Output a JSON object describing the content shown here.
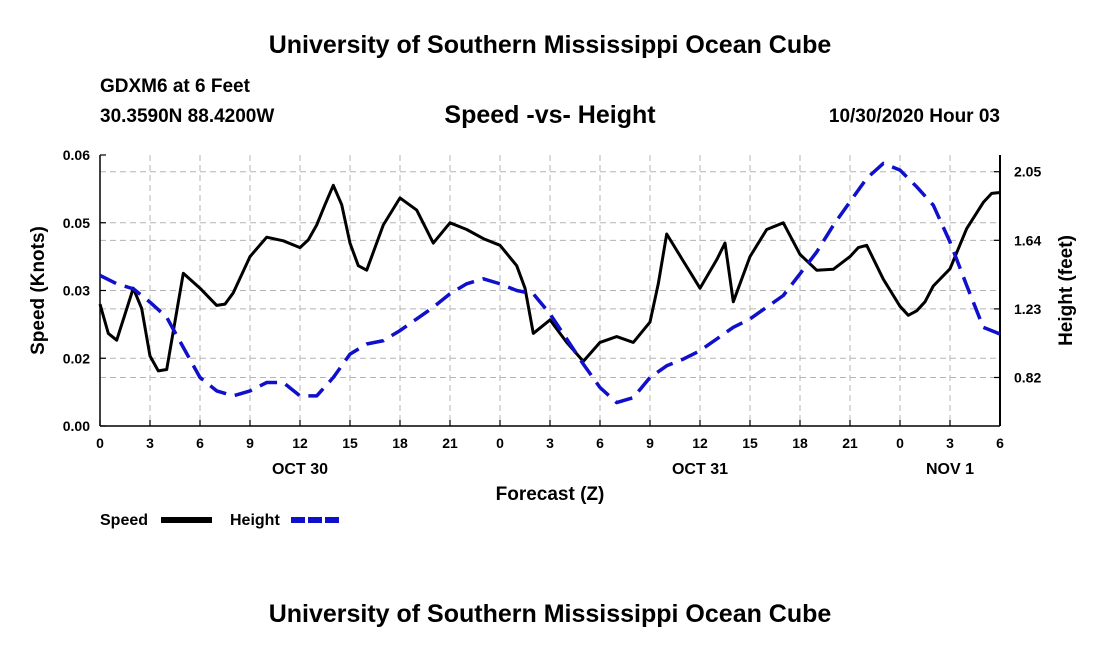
{
  "header": {
    "title": "University of Southern Mississippi Ocean Cube",
    "station": "GDXM6 at 6 Feet",
    "coords": "30.3590N 88.4200W",
    "subtitle": "Speed -vs- Height",
    "timestamp": "10/30/2020 Hour 03"
  },
  "footer": {
    "title": "University of Southern Mississippi Ocean Cube"
  },
  "colors": {
    "speed": "#000000",
    "height": "#1010cc",
    "grid": "#b4b4b4"
  },
  "chart_data": {
    "type": "line",
    "title": "Speed -vs- Height",
    "xlabel": "Forecast (Z)",
    "ylabel": "Speed (Knots)",
    "y2label": "Height (feet)",
    "xlim": [
      0,
      54
    ],
    "ylim": [
      0,
      0.06
    ],
    "y2lim": [
      0.53,
      2.15
    ],
    "x_ticks": [
      0,
      3,
      6,
      9,
      12,
      15,
      18,
      21,
      24,
      27,
      30,
      33,
      36,
      39,
      42,
      45,
      48,
      51,
      54
    ],
    "x_tick_labels": [
      "0",
      "3",
      "6",
      "9",
      "12",
      "15",
      "18",
      "21",
      "0",
      "3",
      "6",
      "9",
      "12",
      "15",
      "18",
      "21",
      "0",
      "3",
      "6"
    ],
    "x_date_labels": [
      {
        "x": 12,
        "label": "OCT 30"
      },
      {
        "x": 36,
        "label": "OCT 31"
      },
      {
        "x": 51,
        "label": "NOV 1"
      }
    ],
    "y_ticks": [
      0.0,
      0.015,
      0.03,
      0.045,
      0.06
    ],
    "y_tick_labels": [
      "0.00",
      "0.02",
      "0.03",
      "0.05",
      "0.06"
    ],
    "y2_ticks": [
      0.82,
      1.23,
      1.64,
      2.05
    ],
    "y2_tick_labels": [
      "0.82",
      "1.23",
      "1.64",
      "2.05"
    ],
    "legend": [
      {
        "name": "Speed",
        "style": "solid"
      },
      {
        "name": "Height",
        "style": "dashed"
      }
    ],
    "series": [
      {
        "name": "Speed",
        "axis": "left",
        "x": [
          0,
          0.5,
          1,
          2,
          2.5,
          3,
          3.5,
          4,
          5,
          6,
          7,
          7.5,
          8,
          9,
          10,
          11,
          12,
          12.5,
          13,
          13.5,
          14,
          14.5,
          15,
          15.5,
          16,
          17,
          18,
          19,
          20,
          21,
          22,
          23,
          24,
          25,
          25.5,
          26,
          27,
          28,
          29,
          30,
          31,
          32,
          33,
          33.5,
          34,
          35,
          35.5,
          36,
          37,
          37.5,
          38,
          39,
          40,
          41,
          42,
          43,
          44,
          45,
          45.5,
          46,
          47,
          48,
          48.5,
          49,
          49.5,
          50,
          51,
          52,
          53,
          53.5,
          54
        ],
        "y": [
          0.027,
          0.0205,
          0.019,
          0.0305,
          0.026,
          0.0155,
          0.0122,
          0.0125,
          0.0338,
          0.0305,
          0.0267,
          0.027,
          0.0295,
          0.0375,
          0.0418,
          0.041,
          0.0395,
          0.0412,
          0.0445,
          0.049,
          0.0533,
          0.049,
          0.0405,
          0.0355,
          0.0345,
          0.0445,
          0.0505,
          0.0478,
          0.0405,
          0.045,
          0.0435,
          0.0415,
          0.04,
          0.0355,
          0.0305,
          0.0205,
          0.0235,
          0.0185,
          0.0143,
          0.0185,
          0.0198,
          0.0185,
          0.023,
          0.0315,
          0.0425,
          0.0365,
          0.0335,
          0.0305,
          0.0368,
          0.0405,
          0.0275,
          0.0375,
          0.0435,
          0.045,
          0.038,
          0.0345,
          0.0347,
          0.0375,
          0.0395,
          0.04,
          0.0325,
          0.0265,
          0.0245,
          0.0255,
          0.0275,
          0.031,
          0.0348,
          0.0437,
          0.0495,
          0.0515,
          0.0517
        ]
      },
      {
        "name": "Height",
        "axis": "right",
        "x": [
          0,
          1,
          2,
          3,
          4,
          5,
          6,
          7,
          8,
          9,
          10,
          11,
          12,
          13,
          14,
          15,
          16,
          17,
          18,
          19,
          20,
          21,
          22,
          23,
          24,
          25,
          26,
          27,
          28,
          29,
          30,
          31,
          32,
          33,
          34,
          35,
          36,
          37,
          38,
          39,
          40,
          41,
          42,
          43,
          44,
          45,
          46,
          47,
          48,
          49,
          50,
          51,
          52,
          53,
          54
        ],
        "y": [
          1.43,
          1.38,
          1.35,
          1.27,
          1.18,
          1.0,
          0.82,
          0.74,
          0.71,
          0.74,
          0.79,
          0.79,
          0.71,
          0.71,
          0.82,
          0.96,
          1.02,
          1.04,
          1.1,
          1.17,
          1.24,
          1.32,
          1.38,
          1.41,
          1.38,
          1.34,
          1.32,
          1.2,
          1.05,
          0.9,
          0.76,
          0.67,
          0.7,
          0.82,
          0.89,
          0.93,
          0.98,
          1.05,
          1.12,
          1.17,
          1.24,
          1.31,
          1.44,
          1.57,
          1.73,
          1.87,
          2.01,
          2.1,
          2.06,
          1.96,
          1.85,
          1.63,
          1.37,
          1.12,
          1.08
        ]
      }
    ]
  }
}
